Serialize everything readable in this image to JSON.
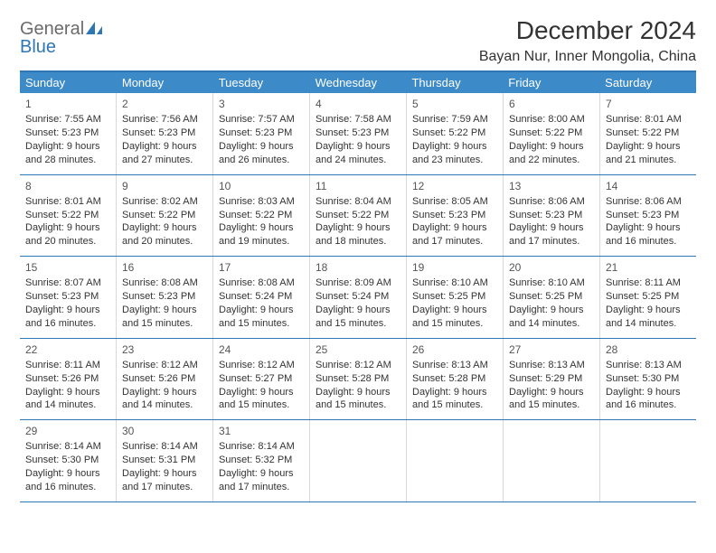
{
  "brand": {
    "part1": "General",
    "part2": "Blue"
  },
  "title": "December 2024",
  "location": "Bayan Nur, Inner Mongolia, China",
  "colors": {
    "header_bg": "#3d8ac9",
    "border": "#2f76b5",
    "text": "#333333",
    "logo_gray": "#6b6b6b",
    "logo_blue": "#2f76b5"
  },
  "weekdays": [
    "Sunday",
    "Monday",
    "Tuesday",
    "Wednesday",
    "Thursday",
    "Friday",
    "Saturday"
  ],
  "weeks": [
    [
      {
        "n": "1",
        "sr": "Sunrise: 7:55 AM",
        "ss": "Sunset: 5:23 PM",
        "d1": "Daylight: 9 hours",
        "d2": "and 28 minutes."
      },
      {
        "n": "2",
        "sr": "Sunrise: 7:56 AM",
        "ss": "Sunset: 5:23 PM",
        "d1": "Daylight: 9 hours",
        "d2": "and 27 minutes."
      },
      {
        "n": "3",
        "sr": "Sunrise: 7:57 AM",
        "ss": "Sunset: 5:23 PM",
        "d1": "Daylight: 9 hours",
        "d2": "and 26 minutes."
      },
      {
        "n": "4",
        "sr": "Sunrise: 7:58 AM",
        "ss": "Sunset: 5:23 PM",
        "d1": "Daylight: 9 hours",
        "d2": "and 24 minutes."
      },
      {
        "n": "5",
        "sr": "Sunrise: 7:59 AM",
        "ss": "Sunset: 5:22 PM",
        "d1": "Daylight: 9 hours",
        "d2": "and 23 minutes."
      },
      {
        "n": "6",
        "sr": "Sunrise: 8:00 AM",
        "ss": "Sunset: 5:22 PM",
        "d1": "Daylight: 9 hours",
        "d2": "and 22 minutes."
      },
      {
        "n": "7",
        "sr": "Sunrise: 8:01 AM",
        "ss": "Sunset: 5:22 PM",
        "d1": "Daylight: 9 hours",
        "d2": "and 21 minutes."
      }
    ],
    [
      {
        "n": "8",
        "sr": "Sunrise: 8:01 AM",
        "ss": "Sunset: 5:22 PM",
        "d1": "Daylight: 9 hours",
        "d2": "and 20 minutes."
      },
      {
        "n": "9",
        "sr": "Sunrise: 8:02 AM",
        "ss": "Sunset: 5:22 PM",
        "d1": "Daylight: 9 hours",
        "d2": "and 20 minutes."
      },
      {
        "n": "10",
        "sr": "Sunrise: 8:03 AM",
        "ss": "Sunset: 5:22 PM",
        "d1": "Daylight: 9 hours",
        "d2": "and 19 minutes."
      },
      {
        "n": "11",
        "sr": "Sunrise: 8:04 AM",
        "ss": "Sunset: 5:22 PM",
        "d1": "Daylight: 9 hours",
        "d2": "and 18 minutes."
      },
      {
        "n": "12",
        "sr": "Sunrise: 8:05 AM",
        "ss": "Sunset: 5:23 PM",
        "d1": "Daylight: 9 hours",
        "d2": "and 17 minutes."
      },
      {
        "n": "13",
        "sr": "Sunrise: 8:06 AM",
        "ss": "Sunset: 5:23 PM",
        "d1": "Daylight: 9 hours",
        "d2": "and 17 minutes."
      },
      {
        "n": "14",
        "sr": "Sunrise: 8:06 AM",
        "ss": "Sunset: 5:23 PM",
        "d1": "Daylight: 9 hours",
        "d2": "and 16 minutes."
      }
    ],
    [
      {
        "n": "15",
        "sr": "Sunrise: 8:07 AM",
        "ss": "Sunset: 5:23 PM",
        "d1": "Daylight: 9 hours",
        "d2": "and 16 minutes."
      },
      {
        "n": "16",
        "sr": "Sunrise: 8:08 AM",
        "ss": "Sunset: 5:23 PM",
        "d1": "Daylight: 9 hours",
        "d2": "and 15 minutes."
      },
      {
        "n": "17",
        "sr": "Sunrise: 8:08 AM",
        "ss": "Sunset: 5:24 PM",
        "d1": "Daylight: 9 hours",
        "d2": "and 15 minutes."
      },
      {
        "n": "18",
        "sr": "Sunrise: 8:09 AM",
        "ss": "Sunset: 5:24 PM",
        "d1": "Daylight: 9 hours",
        "d2": "and 15 minutes."
      },
      {
        "n": "19",
        "sr": "Sunrise: 8:10 AM",
        "ss": "Sunset: 5:25 PM",
        "d1": "Daylight: 9 hours",
        "d2": "and 15 minutes."
      },
      {
        "n": "20",
        "sr": "Sunrise: 8:10 AM",
        "ss": "Sunset: 5:25 PM",
        "d1": "Daylight: 9 hours",
        "d2": "and 14 minutes."
      },
      {
        "n": "21",
        "sr": "Sunrise: 8:11 AM",
        "ss": "Sunset: 5:25 PM",
        "d1": "Daylight: 9 hours",
        "d2": "and 14 minutes."
      }
    ],
    [
      {
        "n": "22",
        "sr": "Sunrise: 8:11 AM",
        "ss": "Sunset: 5:26 PM",
        "d1": "Daylight: 9 hours",
        "d2": "and 14 minutes."
      },
      {
        "n": "23",
        "sr": "Sunrise: 8:12 AM",
        "ss": "Sunset: 5:26 PM",
        "d1": "Daylight: 9 hours",
        "d2": "and 14 minutes."
      },
      {
        "n": "24",
        "sr": "Sunrise: 8:12 AM",
        "ss": "Sunset: 5:27 PM",
        "d1": "Daylight: 9 hours",
        "d2": "and 15 minutes."
      },
      {
        "n": "25",
        "sr": "Sunrise: 8:12 AM",
        "ss": "Sunset: 5:28 PM",
        "d1": "Daylight: 9 hours",
        "d2": "and 15 minutes."
      },
      {
        "n": "26",
        "sr": "Sunrise: 8:13 AM",
        "ss": "Sunset: 5:28 PM",
        "d1": "Daylight: 9 hours",
        "d2": "and 15 minutes."
      },
      {
        "n": "27",
        "sr": "Sunrise: 8:13 AM",
        "ss": "Sunset: 5:29 PM",
        "d1": "Daylight: 9 hours",
        "d2": "and 15 minutes."
      },
      {
        "n": "28",
        "sr": "Sunrise: 8:13 AM",
        "ss": "Sunset: 5:30 PM",
        "d1": "Daylight: 9 hours",
        "d2": "and 16 minutes."
      }
    ],
    [
      {
        "n": "29",
        "sr": "Sunrise: 8:14 AM",
        "ss": "Sunset: 5:30 PM",
        "d1": "Daylight: 9 hours",
        "d2": "and 16 minutes."
      },
      {
        "n": "30",
        "sr": "Sunrise: 8:14 AM",
        "ss": "Sunset: 5:31 PM",
        "d1": "Daylight: 9 hours",
        "d2": "and 17 minutes."
      },
      {
        "n": "31",
        "sr": "Sunrise: 8:14 AM",
        "ss": "Sunset: 5:32 PM",
        "d1": "Daylight: 9 hours",
        "d2": "and 17 minutes."
      },
      null,
      null,
      null,
      null
    ]
  ]
}
